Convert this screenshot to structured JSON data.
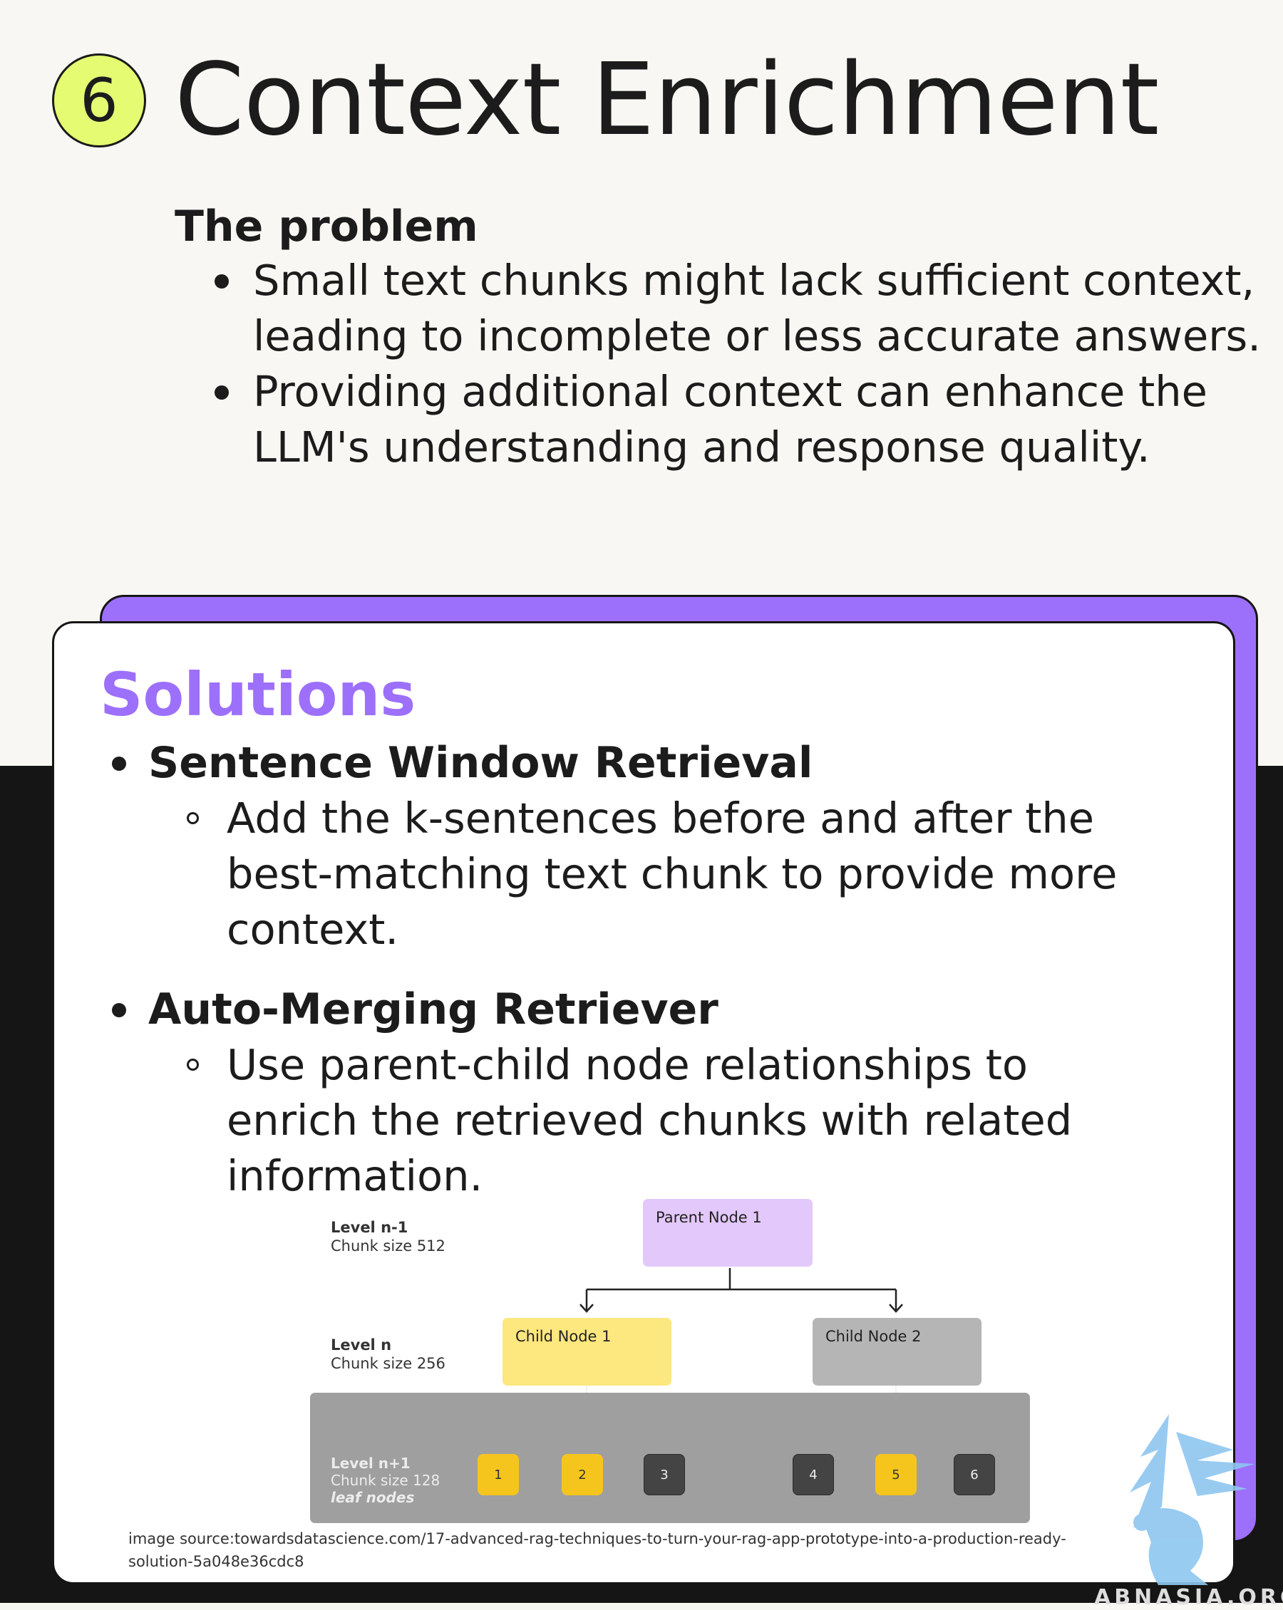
{
  "header": {
    "number": "6",
    "title": "Context Enrichment"
  },
  "problem": {
    "heading": "The problem",
    "items": [
      "Small text chunks might lack sufficient context, leading to incomplete or less accurate answers.",
      "Providing additional context can enhance the LLM's understanding and response quality."
    ]
  },
  "solutions": {
    "title": "Solutions",
    "items": [
      {
        "name": "Sentence Window Retrieval",
        "description": "Add the k-sentences before and after the best-matching text chunk to provide more context."
      },
      {
        "name": "Auto-Merging Retriever",
        "description": "Use parent-child node relationships to enrich the retrieved chunks with related information."
      }
    ]
  },
  "diagram": {
    "levels": [
      {
        "level": "Level n-1",
        "chunk": "Chunk size 512"
      },
      {
        "level": "Level n",
        "chunk": "Chunk size 256"
      },
      {
        "level": "Level n+1",
        "chunk": "Chunk size 128",
        "note": "leaf nodes"
      }
    ],
    "parent": {
      "label": "Parent Node 1",
      "color": "#e3c8fb"
    },
    "children": [
      {
        "label": "Child Node 1",
        "color": "#fde77f"
      },
      {
        "label": "Child Node 2",
        "color": "#b5b5b5"
      }
    ],
    "leaves": [
      {
        "label": "1",
        "highlighted": true
      },
      {
        "label": "2",
        "highlighted": true
      },
      {
        "label": "3",
        "highlighted": false
      },
      {
        "label": "4",
        "highlighted": false
      },
      {
        "label": "5",
        "highlighted": true
      },
      {
        "label": "6",
        "highlighted": false
      }
    ]
  },
  "source": "image source:towardsdatascience.com/17-advanced-rag-techniques-to-turn-your-rag-app-prototype-into-a-production-ready-solution-5a048e36cdc8",
  "watermark": "ABNASIA.ORG",
  "colors": {
    "accent": "#9d70fb",
    "badge": "#e4fb72",
    "dark": "#151515",
    "highlight_leaf": "#f6c51d"
  }
}
